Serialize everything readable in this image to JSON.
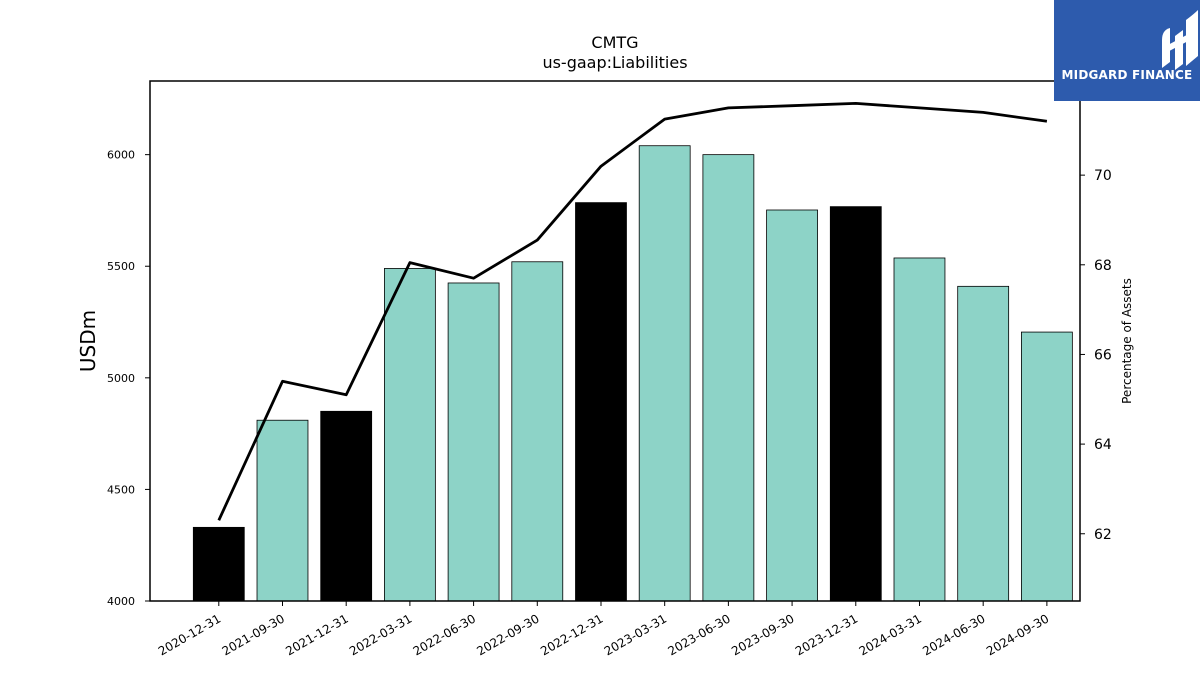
{
  "chart_data": {
    "type": "bar",
    "title": "CMTG",
    "subtitle": "us-gaap:Liabilities",
    "ylabel": "USDm",
    "y2label": "Percentage of Assets",
    "categories": [
      "2020-12-31",
      "2021-09-30",
      "2021-12-31",
      "2022-03-31",
      "2022-06-30",
      "2022-09-30",
      "2022-12-31",
      "2023-03-31",
      "2023-06-30",
      "2023-09-30",
      "2023-12-31",
      "2024-03-31",
      "2024-06-30",
      "2024-09-30"
    ],
    "series": [
      {
        "type": "bar",
        "values": [
          4330,
          4810,
          4850,
          5490,
          5425,
          5520,
          5785,
          6040,
          6000,
          5752,
          5767,
          5537,
          5410,
          5205
        ],
        "colors": [
          "#000000",
          "#8dd3c7",
          "#000000",
          "#8dd3c7",
          "#8dd3c7",
          "#8dd3c7",
          "#000000",
          "#8dd3c7",
          "#8dd3c7",
          "#8dd3c7",
          "#000000",
          "#8dd3c7",
          "#8dd3c7",
          "#8dd3c7"
        ]
      },
      {
        "type": "line",
        "axis": "right",
        "color": "#000000",
        "values": [
          62.3,
          65.4,
          65.1,
          68.05,
          67.7,
          68.55,
          70.2,
          71.25,
          71.5,
          71.55,
          71.6,
          71.5,
          71.4,
          71.2
        ]
      }
    ],
    "ylim": [
      4000,
      6330
    ],
    "yticks": [
      4000,
      4500,
      5000,
      5500,
      6000
    ],
    "y2lim": [
      60.5,
      72.1
    ],
    "y2ticks": [
      62,
      64,
      66,
      68,
      70
    ],
    "grid": false,
    "legend": "none"
  },
  "logo": {
    "text": "MIDGARD FINANCE",
    "color": "#2d5bad"
  }
}
